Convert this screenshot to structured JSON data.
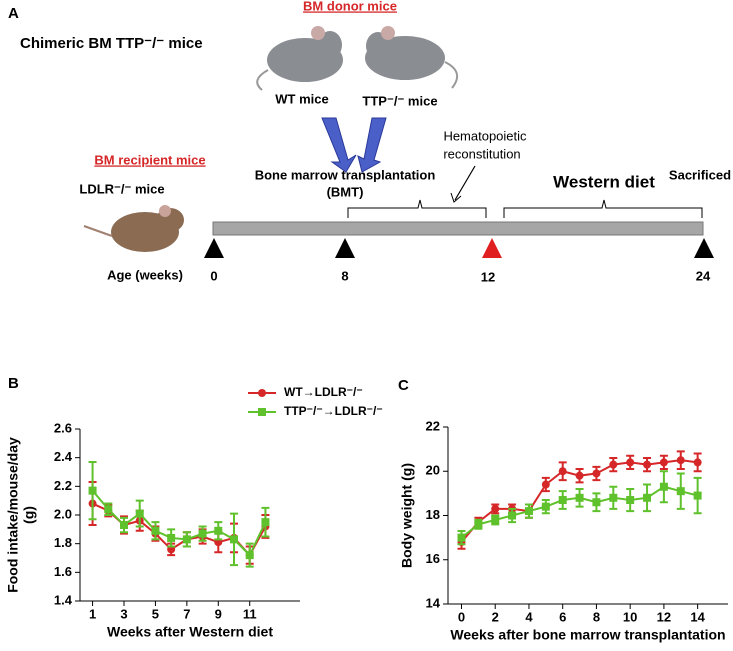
{
  "diagram": {
    "panel_label": "A",
    "title": "Chimeric  BM TTP⁻/⁻ mice",
    "donor_heading": "BM donor mice",
    "donor_wt": "WT mice",
    "donor_ttp": "TTP⁻/⁻ mice",
    "recipient_heading": "BM recipient mice",
    "recipient": "LDLR⁻/⁻ mice",
    "bmt": [
      "Bone marrow transplantation",
      "(BMT)"
    ],
    "reconstitution": [
      "Hematopoietic",
      "reconstitution"
    ],
    "diet": "Western diet",
    "sacrificed": "Sacrificed",
    "age_label": "Age (weeks)",
    "ages": [
      "0",
      "8",
      "12",
      "24"
    ]
  },
  "chart_data": [
    {
      "type": "line",
      "panel_label": "B",
      "ylabel": [
        "Food intake/mouse/day",
        "(g)"
      ],
      "xlabel": "Weeks after Western diet",
      "x": [
        1,
        2,
        3,
        4,
        5,
        6,
        7,
        8,
        9,
        10,
        11,
        12
      ],
      "xlim": [
        0.2,
        14.2
      ],
      "xticks": [
        1,
        3,
        5,
        7,
        9,
        11
      ],
      "ylim": [
        1.4,
        2.6
      ],
      "yticks": [
        1.4,
        1.6,
        1.8,
        {
          "value": 2,
          "label": "2.0"
        },
        2.2,
        2.4,
        2.6
      ],
      "legend": "top-right",
      "series": [
        {
          "name": "WT→LDLR⁻/⁻",
          "color": "#d62728",
          "marker": "circle",
          "values": [
            2.08,
            2.03,
            1.93,
            1.96,
            1.87,
            1.76,
            1.83,
            1.85,
            1.81,
            1.84,
            1.72,
            1.92
          ],
          "errors": [
            0.15,
            0.04,
            0.06,
            0.07,
            0.05,
            0.04,
            0.05,
            0.05,
            0.07,
            0.1,
            0.06,
            0.08
          ]
        },
        {
          "name": "TTP⁻/⁻→LDLR⁻/⁻",
          "color": "#5fc12b",
          "marker": "square",
          "values": [
            2.17,
            2.04,
            1.93,
            2.01,
            1.89,
            1.84,
            1.83,
            1.87,
            1.89,
            1.83,
            1.72,
            1.95
          ],
          "errors": [
            0.2,
            0.04,
            0.05,
            0.09,
            0.06,
            0.06,
            0.05,
            0.05,
            0.06,
            0.18,
            0.08,
            0.1
          ]
        }
      ]
    },
    {
      "type": "line",
      "panel_label": "C",
      "ylabel": [
        "Body weight (g)"
      ],
      "xlabel": "Weeks after bone marrow transplantation",
      "x": [
        0,
        1,
        2,
        3,
        4,
        5,
        6,
        7,
        8,
        9,
        10,
        11,
        12,
        13,
        14
      ],
      "xlim": [
        -0.8,
        15.8
      ],
      "xticks": [
        0,
        2,
        4,
        6,
        8,
        10,
        12,
        14
      ],
      "ylim": [
        14,
        22
      ],
      "yticks": [
        14,
        16,
        18,
        20,
        22
      ],
      "series": [
        {
          "name": "WT→LDLR⁻/⁻",
          "color": "#d62728",
          "marker": "circle",
          "values": [
            16.8,
            17.7,
            18.3,
            18.3,
            18.2,
            19.4,
            20.0,
            19.8,
            19.9,
            20.3,
            20.4,
            20.3,
            20.4,
            20.5,
            20.4
          ],
          "errors": [
            0.3,
            0.2,
            0.2,
            0.2,
            0.3,
            0.3,
            0.4,
            0.3,
            0.3,
            0.3,
            0.3,
            0.3,
            0.3,
            0.4,
            0.4
          ]
        },
        {
          "name": "TTP⁻/⁻→LDLR⁻/⁻",
          "color": "#5fc12b",
          "marker": "square",
          "values": [
            17.0,
            17.6,
            17.8,
            18.0,
            18.2,
            18.4,
            18.7,
            18.8,
            18.6,
            18.8,
            18.7,
            18.8,
            19.3,
            19.1,
            18.9
          ],
          "errors": [
            0.3,
            0.2,
            0.2,
            0.3,
            0.3,
            0.3,
            0.4,
            0.4,
            0.4,
            0.5,
            0.5,
            0.6,
            0.7,
            0.8,
            0.8
          ]
        }
      ]
    }
  ]
}
